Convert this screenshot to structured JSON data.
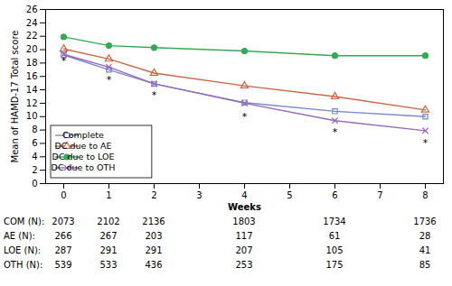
{
  "chart_data": {
    "type": "line",
    "x": [
      0,
      1,
      2,
      4,
      6,
      8
    ],
    "series": [
      {
        "name": "Complete",
        "color": "#7788cc",
        "marker": "square",
        "values": [
          19.2,
          17.0,
          14.9,
          12.1,
          10.8,
          10.0
        ]
      },
      {
        "name": "DC due to AE",
        "color": "#cc6644",
        "marker": "triangle",
        "values": [
          20.1,
          18.6,
          16.5,
          14.6,
          13.0,
          11.0
        ]
      },
      {
        "name": "DC due to LOE",
        "color": "#33aa55",
        "marker": "circle",
        "values": [
          21.9,
          20.6,
          20.3,
          19.8,
          19.1,
          19.1
        ]
      },
      {
        "name": "DC due to OTH",
        "color": "#9966bb",
        "marker": "x",
        "values": [
          19.3,
          17.4,
          14.9,
          12.0,
          9.4,
          7.9
        ]
      }
    ],
    "annotations": [
      {
        "x": 0,
        "y": 18.3,
        "text": "*"
      },
      {
        "x": 1,
        "y": 15.5,
        "text": "*"
      },
      {
        "x": 2,
        "y": 13.2,
        "text": "*"
      },
      {
        "x": 4,
        "y": 10.0,
        "text": "*"
      },
      {
        "x": 6,
        "y": 7.7,
        "text": "*"
      },
      {
        "x": 8,
        "y": 6.0,
        "text": "*"
      }
    ],
    "xlabel": "Weeks",
    "ylabel": "Mean of HAMD-17 Total score",
    "xlim": [
      -0.4,
      8.4
    ],
    "xticks": [
      0,
      1,
      2,
      3,
      4,
      5,
      6,
      7,
      8
    ],
    "ylim": [
      0,
      26
    ],
    "yticks": [
      0,
      2,
      4,
      6,
      8,
      10,
      12,
      14,
      16,
      18,
      20,
      22,
      24,
      26
    ],
    "grid": false,
    "legend": "lower left",
    "table": {
      "rows": [
        "COM (N):",
        "AE (N):",
        "LOE (N):",
        "OTH (N):"
      ],
      "x": [
        0,
        1,
        2,
        4,
        6,
        8
      ],
      "values": [
        [
          2073,
          2102,
          2136,
          1803,
          1734,
          1736
        ],
        [
          266,
          267,
          203,
          117,
          61,
          28
        ],
        [
          287,
          291,
          291,
          207,
          105,
          41
        ],
        [
          539,
          533,
          436,
          253,
          175,
          85
        ]
      ]
    }
  }
}
